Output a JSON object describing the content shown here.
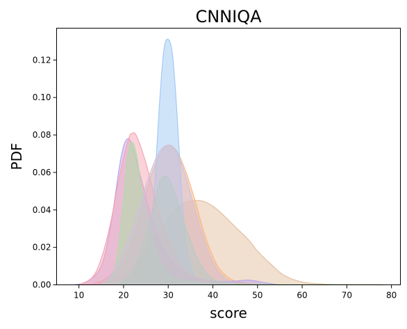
{
  "chart_data": {
    "type": "area",
    "title": "CNNIQA",
    "xlabel": "score",
    "ylabel": "PDF",
    "xlim": [
      5,
      82
    ],
    "ylim": [
      0,
      0.137
    ],
    "x_ticks": [
      10,
      20,
      30,
      40,
      50,
      60,
      70,
      80
    ],
    "x_tick_labels": [
      "10",
      "20",
      "30",
      "40",
      "50",
      "60",
      "70",
      "80"
    ],
    "y_ticks": [
      0.0,
      0.02,
      0.04,
      0.06,
      0.08,
      0.1,
      0.12
    ],
    "y_tick_labels": [
      "0.00",
      "0.02",
      "0.04",
      "0.06",
      "0.08",
      "0.10",
      "0.12"
    ],
    "grid": false,
    "legend": "none",
    "fill_opacity": 0.5,
    "series": [
      {
        "color": "#e3bfa0",
        "x": [
          10,
          15,
          18,
          20,
          22,
          25,
          28,
          30,
          32,
          34,
          36,
          38,
          40,
          42,
          45,
          48,
          50,
          53,
          56,
          60,
          65,
          70,
          78
        ],
        "values": [
          0,
          0.001,
          0.003,
          0.006,
          0.01,
          0.018,
          0.028,
          0.035,
          0.041,
          0.044,
          0.045,
          0.0445,
          0.042,
          0.038,
          0.031,
          0.024,
          0.018,
          0.011,
          0.005,
          0.0015,
          0.0004,
          0.0001,
          0
        ]
      },
      {
        "color": "#f8b88a",
        "x": [
          12,
          15,
          18,
          20,
          22,
          24,
          26,
          28,
          30,
          32,
          34,
          36,
          38,
          40,
          42,
          45,
          50,
          55
        ],
        "values": [
          0,
          0.002,
          0.007,
          0.013,
          0.024,
          0.04,
          0.057,
          0.069,
          0.0745,
          0.071,
          0.06,
          0.045,
          0.028,
          0.015,
          0.007,
          0.002,
          0.0003,
          0
        ]
      },
      {
        "color": "#a1c9f4",
        "x": [
          15,
          20,
          24,
          26,
          27,
          28,
          29,
          30,
          31,
          32,
          33,
          34,
          36,
          38,
          42
        ],
        "values": [
          0,
          0.0005,
          0.005,
          0.025,
          0.055,
          0.095,
          0.125,
          0.131,
          0.122,
          0.09,
          0.05,
          0.022,
          0.004,
          0.0005,
          0
        ]
      },
      {
        "color": "#b9a5ec",
        "x": [
          9,
          12,
          15,
          17,
          19,
          20,
          21,
          22,
          24,
          26,
          28,
          30,
          33,
          36,
          40,
          45,
          48,
          52,
          55
        ],
        "values": [
          0,
          0.002,
          0.01,
          0.03,
          0.062,
          0.074,
          0.078,
          0.074,
          0.056,
          0.038,
          0.024,
          0.015,
          0.008,
          0.004,
          0.002,
          0.002,
          0.0025,
          0.001,
          0
        ]
      },
      {
        "color": "#f7a5b3",
        "x": [
          10,
          13,
          15,
          17,
          19,
          21,
          22,
          23,
          25,
          27,
          29,
          31,
          33,
          36,
          40,
          45,
          50
        ],
        "values": [
          0,
          0.004,
          0.014,
          0.032,
          0.057,
          0.077,
          0.081,
          0.079,
          0.065,
          0.047,
          0.03,
          0.018,
          0.01,
          0.004,
          0.0015,
          0.0005,
          0
        ]
      },
      {
        "color": "#a8dfa2",
        "x": [
          15,
          18,
          20,
          21,
          22,
          23,
          24,
          26,
          28,
          30,
          32,
          35,
          38,
          42,
          50,
          60,
          70,
          78
        ],
        "values": [
          0,
          0.008,
          0.045,
          0.07,
          0.076,
          0.068,
          0.052,
          0.028,
          0.013,
          0.006,
          0.003,
          0.0015,
          0.0008,
          0.0004,
          0.0002,
          0.0001,
          0.0001,
          0
        ]
      },
      {
        "color": "#9fd4b0",
        "x": [
          18,
          20,
          22,
          24,
          26,
          27,
          28,
          29,
          30,
          31,
          32,
          34,
          36,
          38,
          40,
          42,
          45,
          48
        ],
        "values": [
          0,
          0.002,
          0.007,
          0.018,
          0.036,
          0.046,
          0.054,
          0.058,
          0.057,
          0.052,
          0.045,
          0.03,
          0.017,
          0.008,
          0.003,
          0.0015,
          0.0005,
          0
        ]
      },
      {
        "color": "#cfc0d9",
        "x": [
          15,
          18,
          20,
          22,
          24,
          26,
          28,
          30,
          32,
          34,
          36,
          38,
          40,
          42,
          45
        ],
        "values": [
          0,
          0.008,
          0.018,
          0.03,
          0.045,
          0.06,
          0.071,
          0.0745,
          0.07,
          0.057,
          0.04,
          0.024,
          0.012,
          0.005,
          0
        ]
      }
    ]
  }
}
